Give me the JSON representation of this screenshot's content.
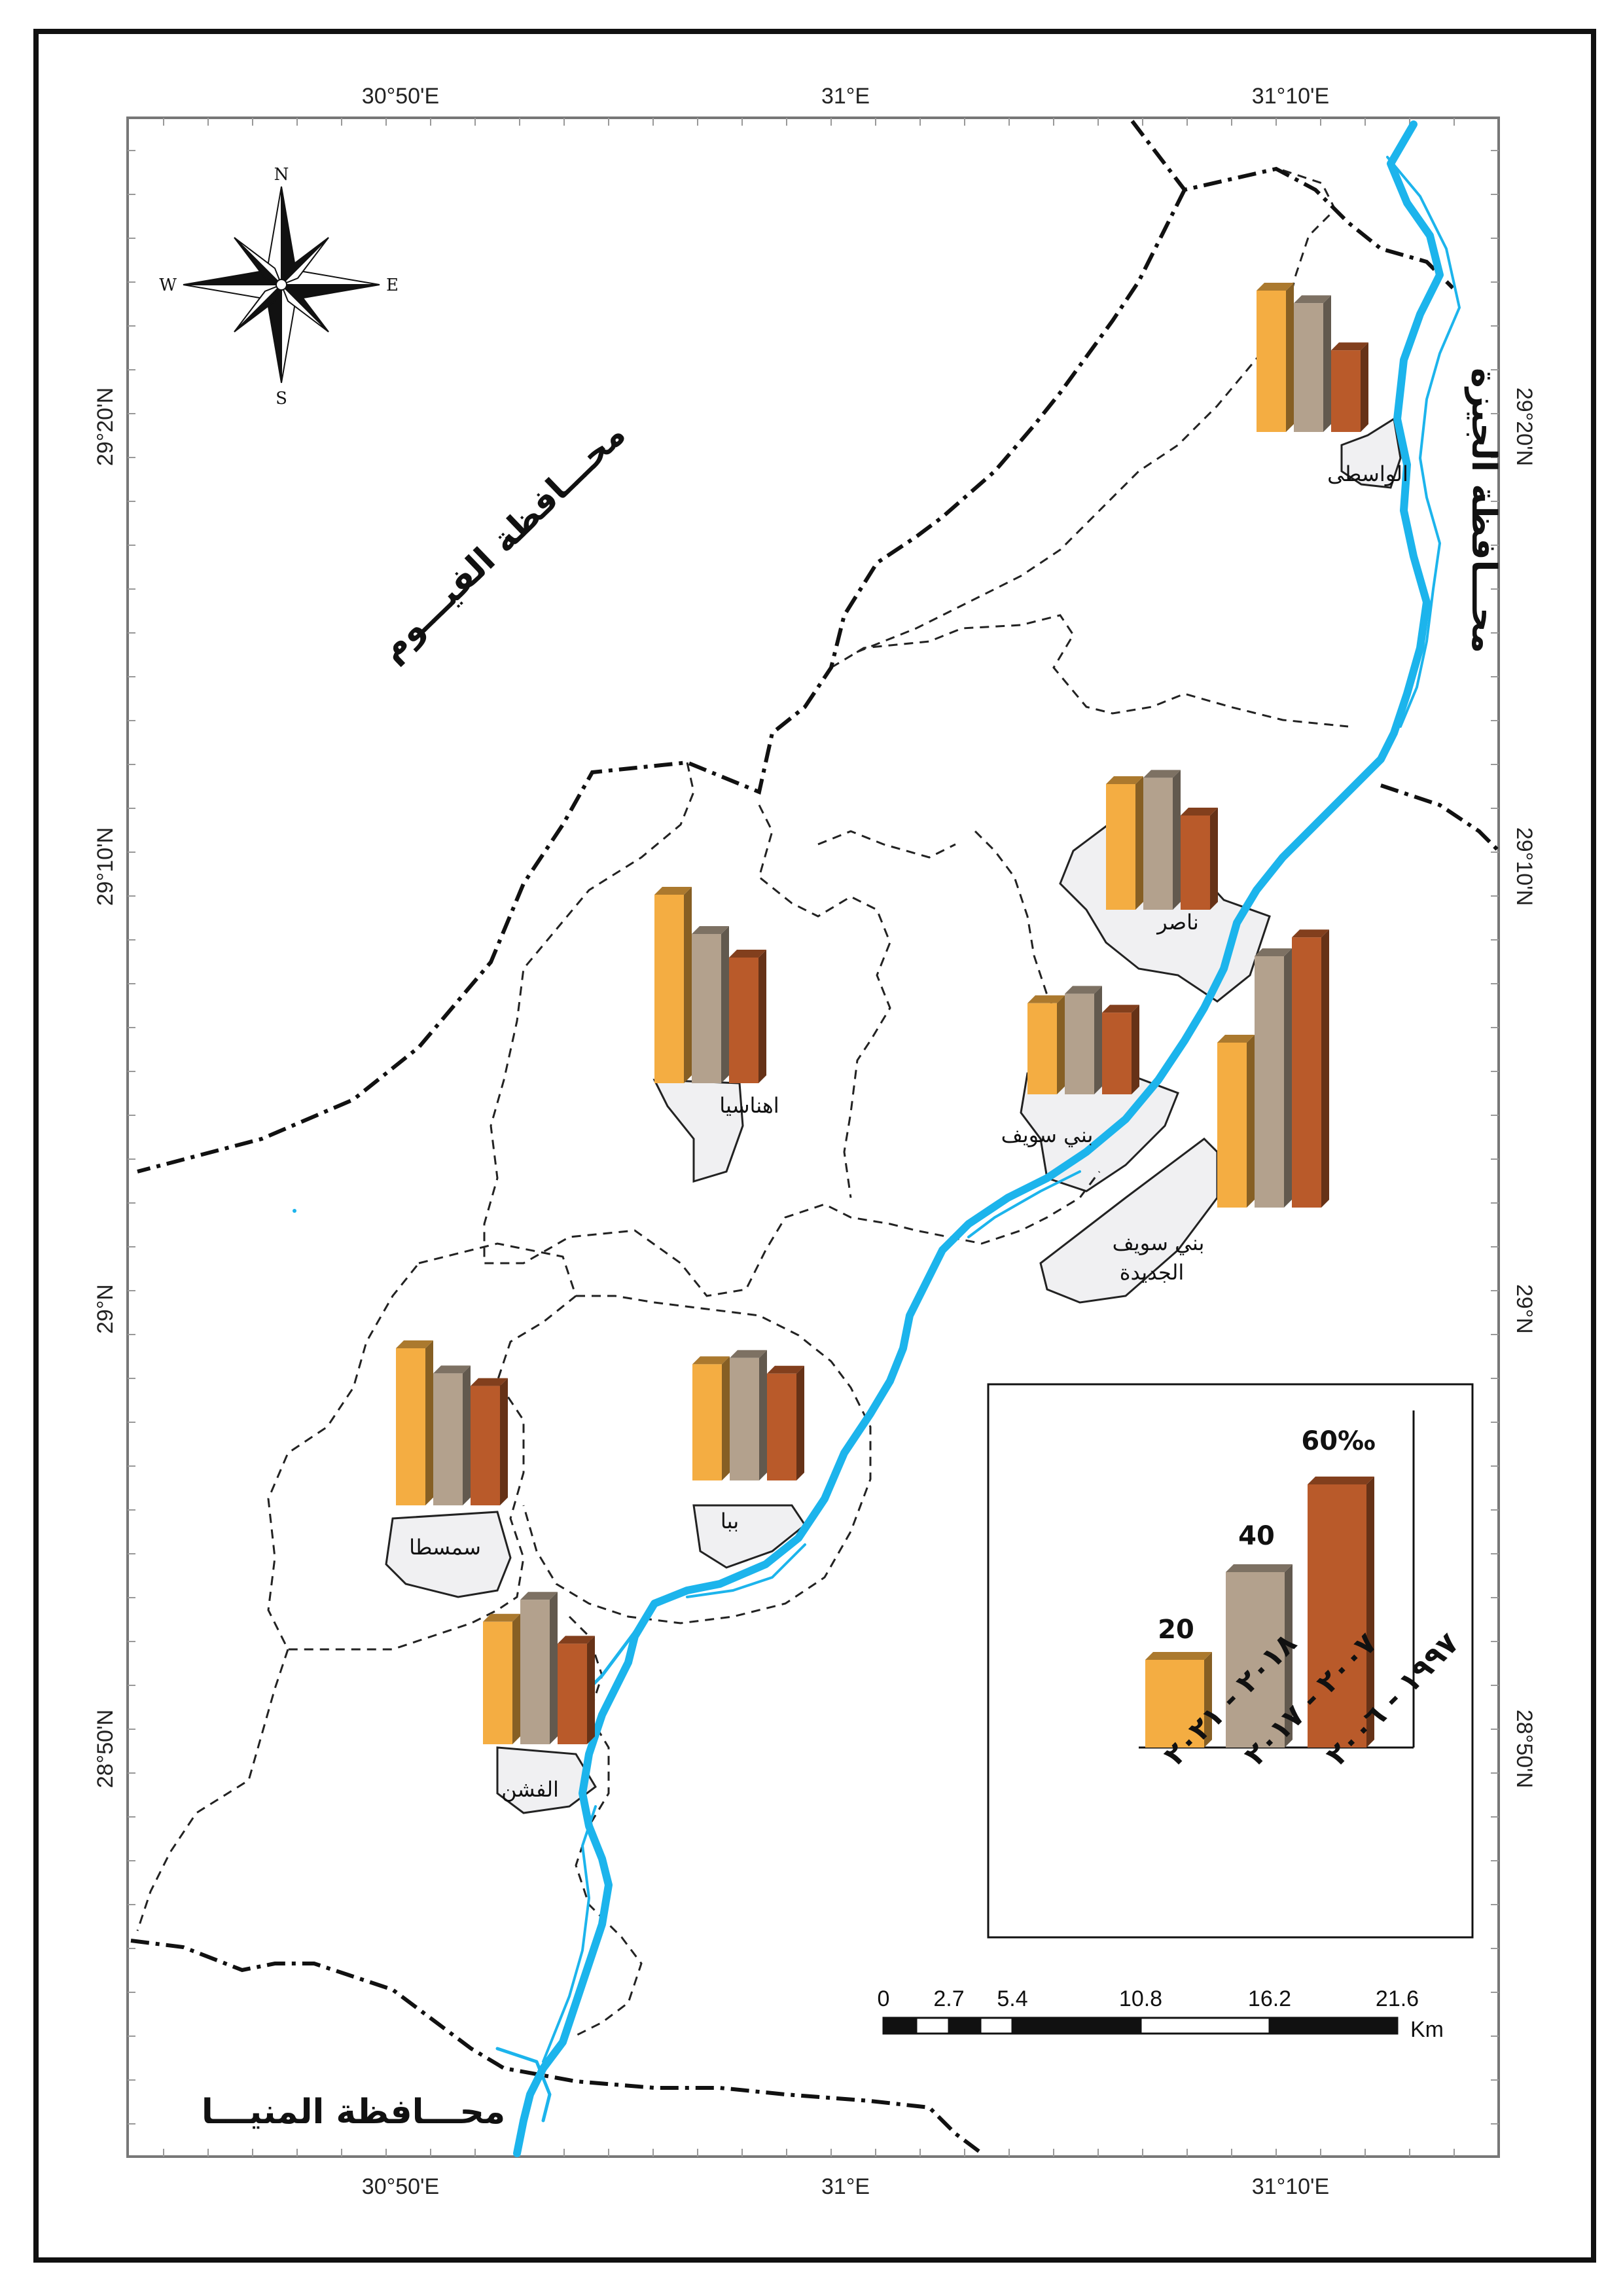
{
  "coordinates": {
    "lon_labels": [
      "30°50'E",
      "31°E",
      "31°10'E"
    ],
    "lat_labels": [
      "29°20'N",
      "29°10'N",
      "29°N",
      "28°50'N"
    ]
  },
  "compass": {
    "n": "N",
    "s": "S",
    "e": "E",
    "w": "W"
  },
  "governorates": {
    "fayoum": "محـــافظة الفيـــوم",
    "giza": "محـــافظة الجيزة",
    "minya": "محـــافظة المنيـــا"
  },
  "towns": [
    {
      "id": "wasta",
      "name": "الواسطى",
      "values": [
        0.9,
        0.82,
        0.52
      ]
    },
    {
      "id": "nasser",
      "name": "ناصر",
      "values": [
        0.8,
        0.84,
        0.6
      ]
    },
    {
      "id": "ihnasia",
      "name": "اهناسيا",
      "values": [
        1.2,
        0.95,
        0.8
      ]
    },
    {
      "id": "benisuef",
      "name": "بني سويف",
      "values": [
        0.58,
        0.64,
        0.52
      ]
    },
    {
      "id": "newbenisuef",
      "name_lines": [
        "بني سويف",
        "الجديدة"
      ],
      "values": [
        1.05,
        1.6,
        1.72
      ]
    },
    {
      "id": "somosta",
      "name": "سمسطا",
      "values": [
        1.0,
        0.84,
        0.76
      ]
    },
    {
      "id": "biba",
      "name": "ببا",
      "values": [
        0.74,
        0.78,
        0.68
      ]
    },
    {
      "id": "fashn",
      "name": "الفشن",
      "values": [
        0.78,
        0.92,
        0.64
      ]
    }
  ],
  "legend": {
    "bars": [
      {
        "value_label": "20",
        "value": 20,
        "color": "#f4ad42"
      },
      {
        "value_label": "40",
        "value": 40,
        "color": "#b3a18d"
      },
      {
        "value_label": "60‰",
        "value": 60,
        "color": "#b95a2a"
      }
    ],
    "periods": [
      "٢٠١٨ - ٢٠٢١",
      "٢٠٠٧ - ٢٠١٧",
      "١٩٩٧ - ٢٠٠٦"
    ]
  },
  "scale_bar": {
    "ticks": [
      "0",
      "2.7",
      "5.4",
      "10.8",
      "16.2",
      "21.6"
    ],
    "unit": "Km"
  },
  "colors": {
    "river": "#1cb4ec",
    "bar_period_1": "#f4ad42",
    "bar_period_2": "#b3a18d",
    "bar_period_3": "#b95a2a",
    "urban_fill": "#f0f0f2"
  }
}
